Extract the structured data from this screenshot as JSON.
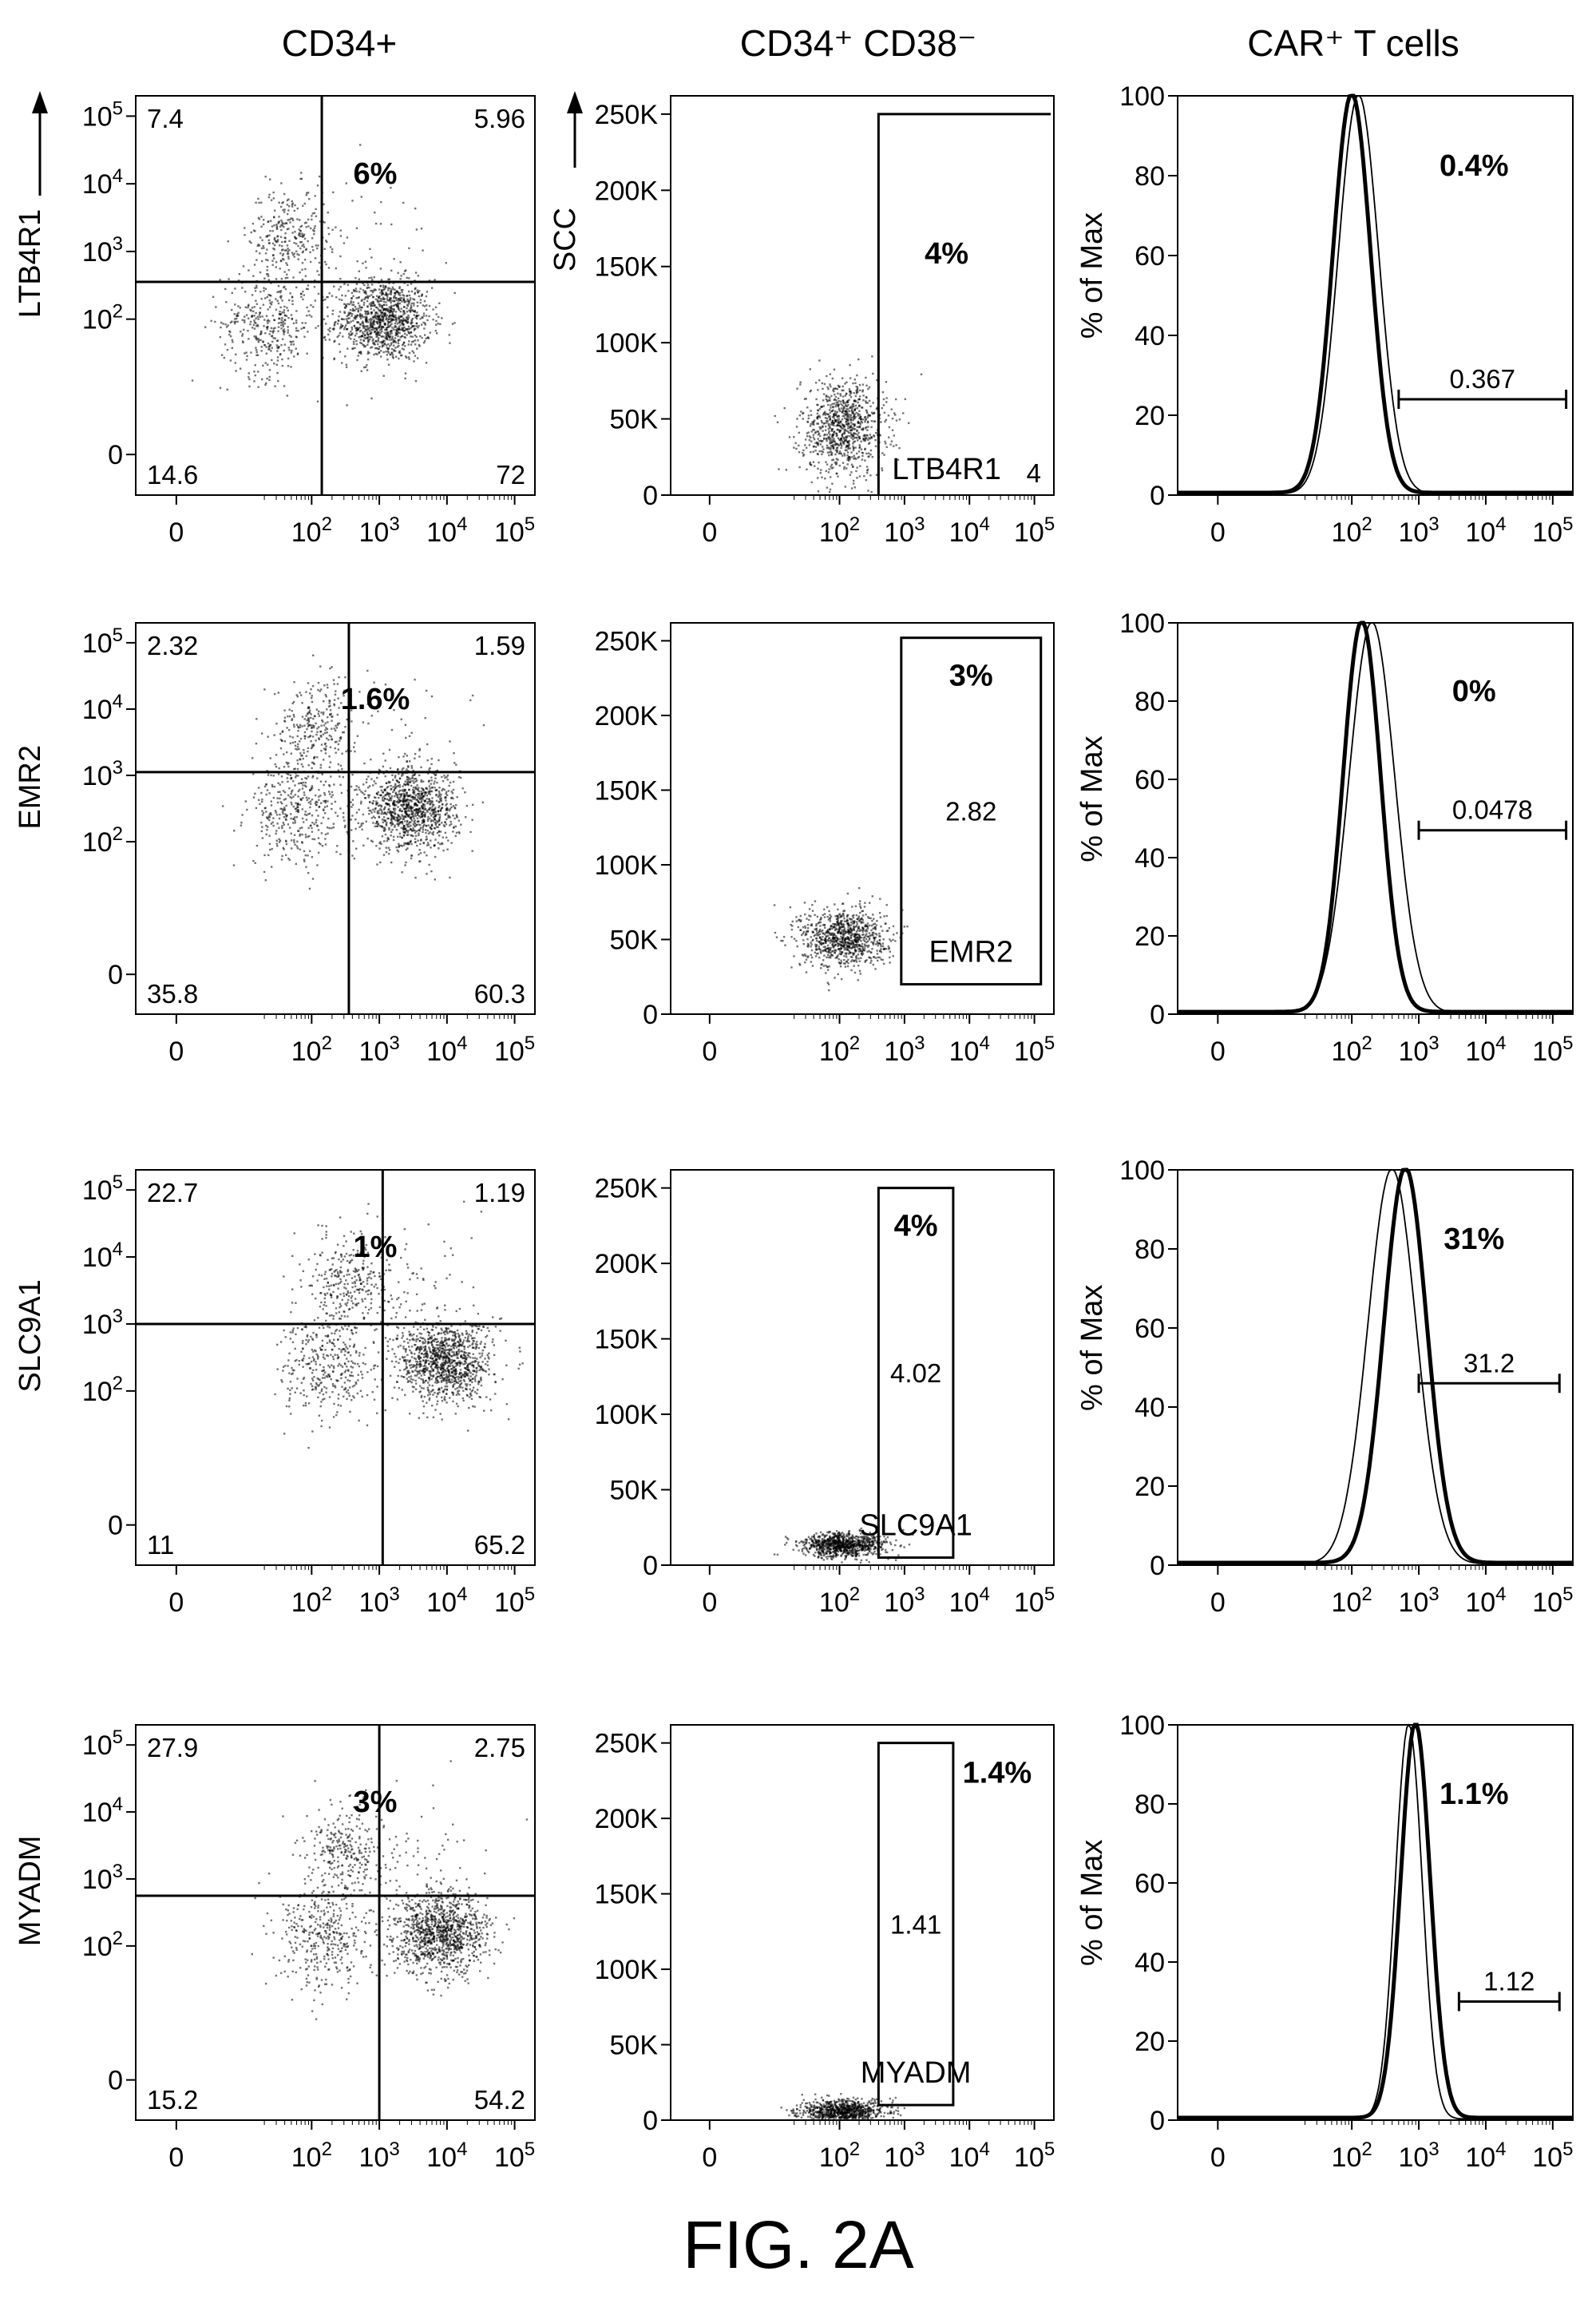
{
  "column_titles": {
    "col1": "CD34+",
    "col2": "CD34⁺  CD38⁻",
    "col3": "CAR⁺  T  cells"
  },
  "figure_title": "FIG. 2A",
  "colors": {
    "ink": "#000000",
    "background": "#ffffff"
  },
  "chart_data": [
    {
      "type": "scatter",
      "panel": "quadrant",
      "row": 1,
      "ylabel": "LTB4R1",
      "y_arrow": true,
      "x_ticks": [
        "0",
        "10^2",
        "10^3",
        "10^4",
        "10^5"
      ],
      "y_ticks": [
        "0",
        "10^2",
        "10^3",
        "10^4",
        "10^5"
      ],
      "gate_x": 2.15,
      "gate_y": 2.55,
      "quadrants": {
        "upper_left": "7.4",
        "upper_right": "5.96",
        "lower_left": "14.6",
        "lower_right": "72"
      },
      "percent": "6%"
    },
    {
      "type": "scatter",
      "panel": "gate",
      "row": 1,
      "ylabel": "SCC",
      "y_arrow": true,
      "x_ticks": [
        "0",
        "10^2",
        "10^3",
        "10^4",
        "10^5"
      ],
      "y_ticks": [
        "0",
        "50K",
        "100K",
        "150K",
        "200K",
        "250K"
      ],
      "ylim": [
        0,
        262000
      ],
      "gate_x_min": 2.6,
      "gate_y_max": 250000,
      "gate_value": "4",
      "gate_label": "LTB4R1",
      "percent": "4%"
    },
    {
      "type": "line",
      "panel": "histogram",
      "row": 1,
      "ylabel": "% of Max",
      "x_ticks": [
        "0",
        "10^2",
        "10^3",
        "10^4",
        "10^5"
      ],
      "y_ticks": [
        "0",
        "20",
        "40",
        "60",
        "80",
        "100"
      ],
      "ylim": [
        0,
        100
      ],
      "series": [
        {
          "peak_log": 2.0,
          "sigma": 0.28
        },
        {
          "peak_log": 2.1,
          "sigma": 0.3
        }
      ],
      "gate_range": [
        2.7,
        5.2
      ],
      "gate_value": "0.367",
      "percent": "0.4%"
    },
    {
      "type": "scatter",
      "panel": "quadrant",
      "row": 2,
      "ylabel": "EMR2",
      "y_arrow": false,
      "x_ticks": [
        "0",
        "10^2",
        "10^3",
        "10^4",
        "10^5"
      ],
      "y_ticks": [
        "0",
        "10^2",
        "10^3",
        "10^4",
        "10^5"
      ],
      "gate_x": 2.55,
      "gate_y": 3.05,
      "quadrants": {
        "upper_left": "2.32",
        "upper_right": "1.59",
        "lower_left": "35.8",
        "lower_right": "60.3"
      },
      "percent": "1.6%"
    },
    {
      "type": "scatter",
      "panel": "gate",
      "row": 2,
      "ylabel": "",
      "y_arrow": false,
      "x_ticks": [
        "0",
        "10^2",
        "10^3",
        "10^4",
        "10^5"
      ],
      "y_ticks": [
        "0",
        "50K",
        "100K",
        "150K",
        "200K",
        "250K"
      ],
      "ylim": [
        0,
        262000
      ],
      "gate_x_range": [
        2.95,
        5.1
      ],
      "gate_y_range": [
        20000,
        252000
      ],
      "gate_value": "2.82",
      "gate_label": "EMR2",
      "percent": "3%"
    },
    {
      "type": "line",
      "panel": "histogram",
      "row": 2,
      "ylabel": "% of Max",
      "x_ticks": [
        "0",
        "10^2",
        "10^3",
        "10^4",
        "10^5"
      ],
      "y_ticks": [
        "0",
        "20",
        "40",
        "60",
        "80",
        "100"
      ],
      "ylim": [
        0,
        100
      ],
      "series": [
        {
          "peak_log": 2.15,
          "sigma": 0.28
        },
        {
          "peak_log": 2.3,
          "sigma": 0.34
        }
      ],
      "gate_range": [
        3.0,
        5.2
      ],
      "gate_value": "0.0478",
      "percent": "0%"
    },
    {
      "type": "scatter",
      "panel": "quadrant",
      "row": 3,
      "ylabel": "SLC9A1",
      "y_arrow": false,
      "x_ticks": [
        "0",
        "10^2",
        "10^3",
        "10^4",
        "10^5"
      ],
      "y_ticks": [
        "0",
        "10^2",
        "10^3",
        "10^4",
        "10^5"
      ],
      "gate_x": 3.05,
      "gate_y": 3.0,
      "quadrants": {
        "upper_left": "22.7",
        "upper_right": "1.19",
        "lower_left": "11",
        "lower_right": "65.2"
      },
      "percent": "1%"
    },
    {
      "type": "scatter",
      "panel": "gate",
      "row": 3,
      "ylabel": "",
      "y_arrow": false,
      "x_ticks": [
        "0",
        "10^2",
        "10^3",
        "10^4",
        "10^5"
      ],
      "y_ticks": [
        "0",
        "50K",
        "100K",
        "150K",
        "200K",
        "250K"
      ],
      "ylim": [
        0,
        262000
      ],
      "gate_x_range": [
        2.6,
        3.75
      ],
      "gate_y_range": [
        5000,
        250000
      ],
      "gate_value": "4.02",
      "gate_label": "SLC9A1",
      "percent": "4%"
    },
    {
      "type": "line",
      "panel": "histogram",
      "row": 3,
      "ylabel": "% of Max",
      "x_ticks": [
        "0",
        "10^2",
        "10^3",
        "10^4",
        "10^5"
      ],
      "y_ticks": [
        "0",
        "20",
        "40",
        "60",
        "80",
        "100"
      ],
      "ylim": [
        0,
        100
      ],
      "series": [
        {
          "peak_log": 2.8,
          "sigma": 0.32
        },
        {
          "peak_log": 2.6,
          "sigma": 0.36
        }
      ],
      "gate_range": [
        3.0,
        5.1
      ],
      "gate_value": "31.2",
      "percent": "31%"
    },
    {
      "type": "scatter",
      "panel": "quadrant",
      "row": 4,
      "ylabel": "MYADM",
      "y_arrow": false,
      "x_ticks": [
        "0",
        "10^2",
        "10^3",
        "10^4",
        "10^5"
      ],
      "y_ticks": [
        "0",
        "10^2",
        "10^3",
        "10^4",
        "10^5"
      ],
      "gate_x": 3.0,
      "gate_y": 2.75,
      "quadrants": {
        "upper_left": "27.9",
        "upper_right": "2.75",
        "lower_left": "15.2",
        "lower_right": "54.2"
      },
      "percent": "3%"
    },
    {
      "type": "scatter",
      "panel": "gate",
      "row": 4,
      "ylabel": "",
      "y_arrow": false,
      "x_ticks": [
        "0",
        "10^2",
        "10^3",
        "10^4",
        "10^5"
      ],
      "y_ticks": [
        "0",
        "50K",
        "100K",
        "150K",
        "200K",
        "250K"
      ],
      "ylim": [
        0,
        262000
      ],
      "gate_x_range": [
        2.6,
        3.75
      ],
      "gate_y_range": [
        10000,
        250000
      ],
      "gate_value": "1.41",
      "gate_label": "MYADM",
      "percent": "1.4%"
    },
    {
      "type": "line",
      "panel": "histogram",
      "row": 4,
      "ylabel": "% of Max",
      "x_ticks": [
        "0",
        "10^2",
        "10^3",
        "10^4",
        "10^5"
      ],
      "y_ticks": [
        "0",
        "20",
        "40",
        "60",
        "80",
        "100"
      ],
      "ylim": [
        0,
        100
      ],
      "series": [
        {
          "peak_log": 2.95,
          "sigma": 0.22
        },
        {
          "peak_log": 2.85,
          "sigma": 0.2
        }
      ],
      "gate_range": [
        3.6,
        5.1
      ],
      "gate_value": "1.12",
      "percent": "1.1%"
    }
  ]
}
